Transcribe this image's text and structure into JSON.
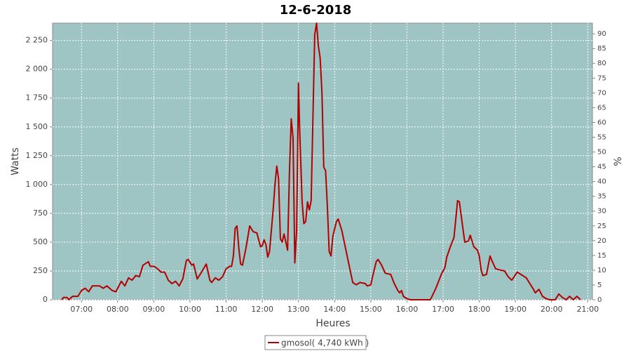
{
  "chart_data": {
    "type": "line",
    "title": "12-6-2018",
    "x_label": "Heures",
    "y_label": "Watts",
    "y2_label": "%",
    "xlim": [
      6.2,
      21.13
    ],
    "ylim": [
      0,
      2400
    ],
    "y2lim": [
      0,
      93.6
    ],
    "xticks": [
      {
        "value": 7,
        "label": "07:00"
      },
      {
        "value": 8,
        "label": "08:00"
      },
      {
        "value": 9,
        "label": "09:00"
      },
      {
        "value": 10,
        "label": "10:00"
      },
      {
        "value": 11,
        "label": "11:00"
      },
      {
        "value": 12,
        "label": "12:00"
      },
      {
        "value": 13,
        "label": "13:00"
      },
      {
        "value": 14,
        "label": "14:00"
      },
      {
        "value": 15,
        "label": "15:00"
      },
      {
        "value": 16,
        "label": "16:00"
      },
      {
        "value": 17,
        "label": "17:00"
      },
      {
        "value": 18,
        "label": "18:00"
      },
      {
        "value": 19,
        "label": "19:00"
      },
      {
        "value": 20,
        "label": "20:00"
      },
      {
        "value": 21,
        "label": "21:00"
      }
    ],
    "yticks": [
      0,
      250,
      500,
      750,
      {
        "value": 1000,
        "label": "1 000"
      },
      {
        "value": 1250,
        "label": "1 250"
      },
      {
        "value": 1500,
        "label": "1 500"
      },
      {
        "value": 1750,
        "label": "1 750"
      },
      {
        "value": 2000,
        "label": "2 000"
      },
      {
        "value": 2250,
        "label": "2 250"
      }
    ],
    "y2ticks": [
      0,
      5,
      10,
      15,
      20,
      25,
      30,
      35,
      40,
      45,
      50,
      55,
      60,
      65,
      70,
      75,
      80,
      85,
      90
    ],
    "grid": true,
    "plot_background": "#9fc4c4",
    "x": [
      6.45,
      6.5,
      6.6,
      6.65,
      6.75,
      6.9,
      7.0,
      7.1,
      7.2,
      7.3,
      7.5,
      7.6,
      7.7,
      7.85,
      7.95,
      8.1,
      8.2,
      8.3,
      8.4,
      8.5,
      8.6,
      8.7,
      8.85,
      8.9,
      9.0,
      9.1,
      9.2,
      9.3,
      9.4,
      9.5,
      9.6,
      9.7,
      9.8,
      9.9,
      9.95,
      10.05,
      10.1,
      10.2,
      10.3,
      10.45,
      10.55,
      10.6,
      10.7,
      10.8,
      10.9,
      11.0,
      11.1,
      11.15,
      11.2,
      11.25,
      11.3,
      11.35,
      11.4,
      11.45,
      11.55,
      11.65,
      11.75,
      11.85,
      11.95,
      12.0,
      12.05,
      12.1,
      12.15,
      12.2,
      12.3,
      12.35,
      12.4,
      12.45,
      12.5,
      12.55,
      12.6,
      12.65,
      12.7,
      12.75,
      12.8,
      12.85,
      12.9,
      12.95,
      13.0,
      13.03,
      13.1,
      13.15,
      13.2,
      13.25,
      13.3,
      13.35,
      13.45,
      13.5,
      13.55,
      13.6,
      13.65,
      13.7,
      13.75,
      13.8,
      13.85,
      13.9,
      13.95,
      14.05,
      14.1,
      14.2,
      14.3,
      14.4,
      14.5,
      14.6,
      14.7,
      14.85,
      14.9,
      15.0,
      15.05,
      15.15,
      15.2,
      15.3,
      15.4,
      15.55,
      15.65,
      15.75,
      15.8,
      15.85,
      15.9,
      16.0,
      16.1,
      16.65,
      16.8,
      16.95,
      17.05,
      17.1,
      17.2,
      17.3,
      17.35,
      17.4,
      17.45,
      17.5,
      17.6,
      17.7,
      17.75,
      17.85,
      17.95,
      18.0,
      18.05,
      18.1,
      18.2,
      18.3,
      18.35,
      18.45,
      18.55,
      18.7,
      18.8,
      18.9,
      19.05,
      19.15,
      19.3,
      19.4,
      19.5,
      19.55,
      19.65,
      19.75,
      19.85,
      19.95,
      20.1,
      20.2,
      20.3,
      20.4,
      20.5,
      20.6,
      20.7,
      20.8
    ],
    "series": [
      {
        "name": "gmosol( 4,740 kWh )",
        "color": "#b30000",
        "values": [
          0,
          20,
          20,
          0,
          30,
          30,
          80,
          100,
          70,
          120,
          120,
          100,
          120,
          80,
          70,
          160,
          120,
          190,
          170,
          210,
          200,
          300,
          330,
          290,
          290,
          270,
          240,
          240,
          170,
          140,
          160,
          120,
          180,
          340,
          350,
          300,
          310,
          180,
          230,
          310,
          170,
          150,
          190,
          170,
          200,
          270,
          290,
          290,
          380,
          620,
          640,
          450,
          310,
          300,
          450,
          640,
          590,
          580,
          460,
          470,
          520,
          480,
          370,
          420,
          780,
          1000,
          1160,
          1050,
          530,
          500,
          570,
          500,
          430,
          1100,
          1570,
          1400,
          320,
          600,
          1880,
          1500,
          850,
          660,
          680,
          850,
          780,
          860,
          2300,
          2400,
          2200,
          2100,
          1800,
          1150,
          1120,
          800,
          420,
          380,
          550,
          680,
          700,
          600,
          450,
          300,
          150,
          130,
          150,
          140,
          120,
          130,
          200,
          330,
          350,
          300,
          230,
          220,
          140,
          80,
          60,
          80,
          30,
          10,
          0,
          0,
          100,
          220,
          280,
          370,
          460,
          540,
          700,
          860,
          850,
          730,
          500,
          510,
          560,
          460,
          430,
          380,
          260,
          210,
          220,
          380,
          340,
          270,
          260,
          250,
          200,
          170,
          240,
          220,
          190,
          140,
          90,
          60,
          90,
          30,
          10,
          0,
          0,
          50,
          20,
          0,
          30,
          0,
          30,
          0
        ]
      }
    ]
  }
}
